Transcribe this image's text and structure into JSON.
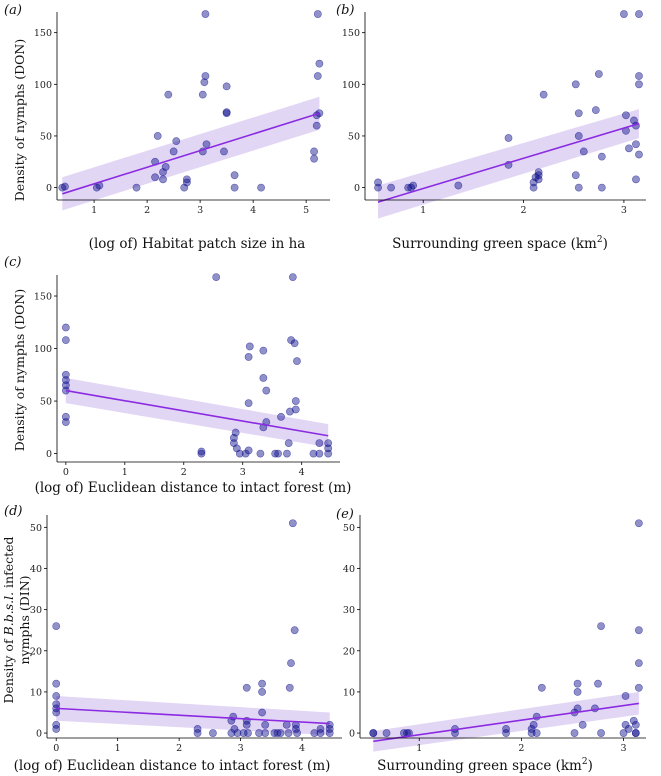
{
  "colors": {
    "point_dark": "#0a0a8a",
    "point_light": "#7070c8",
    "line": "#8a2be2",
    "ribbon": "#d8c8f2",
    "axis": "#000000"
  },
  "chart_data": [
    {
      "type": "scatter",
      "panel": "(a)",
      "xlabel": "(log of) Habitat patch size in ha",
      "ylabel": "Density of nymphs (DON)",
      "xlim": [
        0.3,
        5.45
      ],
      "ylim": [
        -12,
        170
      ],
      "xticks": [
        1,
        2,
        3,
        4,
        5
      ],
      "yticks": [
        0,
        50,
        100,
        150
      ],
      "x": [
        0.4,
        0.45,
        1.05,
        1.1,
        1.8,
        2.15,
        2.15,
        2.2,
        2.3,
        2.3,
        2.35,
        2.4,
        2.5,
        2.55,
        2.7,
        2.75,
        2.75,
        3.05,
        3.05,
        3.08,
        3.1,
        3.1,
        3.12,
        3.45,
        3.5,
        3.5,
        3.5,
        3.65,
        3.65,
        4.15,
        5.15,
        5.15,
        5.2,
        5.2,
        5.22,
        5.22,
        5.25,
        5.25
      ],
      "y": [
        0,
        1,
        0,
        2,
        0,
        10,
        25,
        50,
        8,
        15,
        20,
        90,
        35,
        45,
        0,
        5,
        8,
        35,
        90,
        102,
        108,
        168,
        42,
        35,
        72,
        73,
        98,
        0,
        12,
        0,
        28,
        35,
        60,
        70,
        168,
        108,
        120,
        72
      ],
      "fit": {
        "x": [
          0.4,
          5.25
        ],
        "y": [
          -6,
          72
        ],
        "ci_low": [
          -22,
          56
        ],
        "ci_high": [
          10,
          88
        ]
      }
    },
    {
      "type": "scatter",
      "panel": "(b)",
      "xlabel": "Surrounding green space (km",
      "xlabel_sup": "2",
      "xlabel_end": ")",
      "ylabel": "",
      "xlim": [
        0.42,
        3.22
      ],
      "ylim": [
        -12,
        170
      ],
      "xticks": [
        1,
        2,
        3
      ],
      "yticks": [
        0,
        50,
        100,
        150
      ],
      "x": [
        0.55,
        0.55,
        0.68,
        0.85,
        0.88,
        0.9,
        1.35,
        1.85,
        1.85,
        2.1,
        2.1,
        2.12,
        2.15,
        2.15,
        2.15,
        2.2,
        2.52,
        2.52,
        2.55,
        2.55,
        2.55,
        2.6,
        2.72,
        2.75,
        2.78,
        2.78,
        3.0,
        3.02,
        3.02,
        3.05,
        3.1,
        3.12,
        3.12,
        3.12,
        3.15,
        3.15,
        3.15,
        3.15
      ],
      "y": [
        0,
        5,
        0,
        0,
        0,
        2,
        2,
        22,
        48,
        0,
        5,
        10,
        15,
        12,
        8,
        90,
        12,
        100,
        72,
        50,
        0,
        35,
        75,
        110,
        30,
        0,
        168,
        55,
        70,
        38,
        65,
        60,
        42,
        8,
        100,
        108,
        168,
        32
      ],
      "fit": {
        "x": [
          0.55,
          3.15
        ],
        "y": [
          -14,
          62
        ],
        "ci_low": [
          -30,
          48
        ],
        "ci_high": [
          2,
          76
        ]
      }
    },
    {
      "type": "scatter",
      "panel": "(c)",
      "xlabel": "(log of) Euclidean distance to intact forest (m)",
      "ylabel": "Density of nymphs (DON)",
      "xlim": [
        -0.15,
        4.65
      ],
      "ylim": [
        -8,
        170
      ],
      "xticks": [
        0,
        1,
        2,
        3,
        4
      ],
      "yticks": [
        0,
        50,
        100,
        150
      ],
      "x": [
        0,
        0,
        0,
        0,
        0,
        0,
        0,
        0,
        2.3,
        2.3,
        2.55,
        2.85,
        2.85,
        2.88,
        2.9,
        2.95,
        3.05,
        3.1,
        3.1,
        3.1,
        3.12,
        3.3,
        3.35,
        3.35,
        3.35,
        3.4,
        3.4,
        3.55,
        3.6,
        3.65,
        3.75,
        3.78,
        3.8,
        3.82,
        3.85,
        3.88,
        3.9,
        3.9,
        3.92,
        4.2,
        4.3,
        4.3,
        4.45,
        4.45,
        4.45
      ],
      "y": [
        30,
        35,
        60,
        65,
        70,
        75,
        108,
        120,
        0,
        2,
        168,
        10,
        15,
        20,
        5,
        0,
        0,
        3,
        48,
        92,
        102,
        0,
        25,
        98,
        72,
        30,
        60,
        0,
        0,
        35,
        0,
        10,
        40,
        108,
        168,
        105,
        50,
        42,
        88,
        0,
        0,
        10,
        5,
        10,
        0
      ],
      "fit": {
        "x": [
          0,
          4.45
        ],
        "y": [
          60,
          17
        ],
        "ci_low": [
          48,
          6
        ],
        "ci_high": [
          72,
          28
        ]
      }
    },
    {
      "type": "scatter",
      "panel": "(d)",
      "xlabel": "(log of) Euclidean distance to intact forest (m)",
      "ylabel_line1_pre": "Density of ",
      "ylabel_line1_em": "B.b.s.l.",
      "ylabel_line1_post": " infected",
      "ylabel_line2": "nymphs (DIN)",
      "xlim": [
        -0.15,
        4.65
      ],
      "ylim": [
        -1.2,
        53
      ],
      "xticks": [
        0,
        1,
        2,
        3,
        4
      ],
      "yticks": [
        0,
        10,
        20,
        30,
        40,
        50
      ],
      "x": [
        0,
        0,
        0,
        0,
        0,
        0,
        0,
        0,
        2.3,
        2.3,
        2.55,
        2.85,
        2.85,
        2.88,
        2.9,
        2.95,
        3.05,
        3.1,
        3.1,
        3.1,
        3.12,
        3.3,
        3.35,
        3.35,
        3.35,
        3.4,
        3.4,
        3.55,
        3.6,
        3.65,
        3.75,
        3.78,
        3.8,
        3.82,
        3.85,
        3.88,
        3.9,
        3.9,
        3.92,
        4.2,
        4.3,
        4.3,
        4.45,
        4.45,
        4.45
      ],
      "y": [
        1,
        2,
        5,
        7,
        9,
        12,
        26,
        6,
        0,
        1,
        0,
        0,
        3,
        4,
        1,
        0,
        0,
        2,
        11,
        3,
        0,
        0,
        5,
        12,
        10,
        2,
        0,
        0,
        0,
        0,
        2,
        0,
        11,
        17,
        51,
        25,
        1,
        2,
        0,
        0,
        0,
        1,
        1,
        2,
        0
      ],
      "fit": {
        "x": [
          0,
          4.45
        ],
        "y": [
          6,
          2.3
        ],
        "ci_low": [
          3,
          -0.5
        ],
        "ci_high": [
          9,
          5
        ]
      }
    },
    {
      "type": "scatter",
      "panel": "(e)",
      "xlabel": "Surrounding green space (km",
      "xlabel_sup": "2",
      "xlabel_end": ")",
      "ylabel": "",
      "xlim": [
        0.42,
        3.22
      ],
      "ylim": [
        -1.2,
        53
      ],
      "xticks": [
        1,
        2,
        3
      ],
      "yticks": [
        0,
        10,
        20,
        30,
        40,
        50
      ],
      "x": [
        0.55,
        0.55,
        0.68,
        0.85,
        0.88,
        0.9,
        1.35,
        1.35,
        1.85,
        1.85,
        2.1,
        2.1,
        2.12,
        2.15,
        2.15,
        2.2,
        2.52,
        2.52,
        2.55,
        2.55,
        2.55,
        2.6,
        2.72,
        2.75,
        2.78,
        2.78,
        3.0,
        3.02,
        3.02,
        3.05,
        3.1,
        3.12,
        3.12,
        3.12,
        3.15,
        3.15,
        3.15,
        3.15
      ],
      "y": [
        0,
        0,
        0,
        0,
        0,
        0,
        0,
        1,
        0,
        1,
        0,
        1,
        2,
        4,
        0,
        11,
        0,
        5,
        6,
        10,
        12,
        2,
        6,
        12,
        26,
        0,
        0,
        2,
        9,
        1,
        3,
        0,
        2,
        0,
        17,
        25,
        51,
        11
      ],
      "fit": {
        "x": [
          0.55,
          3.15
        ],
        "y": [
          -2,
          7.2
        ],
        "ci_low": [
          -4.5,
          4.5
        ],
        "ci_high": [
          0.5,
          10
        ]
      }
    }
  ]
}
